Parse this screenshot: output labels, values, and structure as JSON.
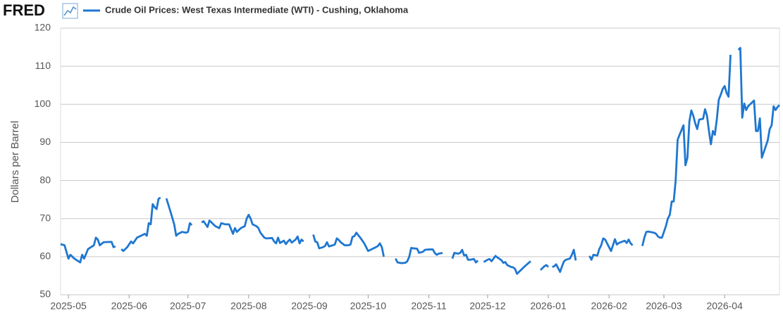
{
  "chart_data": {
    "type": "line",
    "logo": "FRED",
    "ylabel": "Dollars per Barrel",
    "xlim": [
      -4,
      363
    ],
    "xticks": [
      {
        "value": 0,
        "label": "2025-05"
      },
      {
        "value": 31,
        "label": "2025-06"
      },
      {
        "value": 61,
        "label": "2025-07"
      },
      {
        "value": 92,
        "label": "2025-08"
      },
      {
        "value": 123,
        "label": "2025-09"
      },
      {
        "value": 153,
        "label": "2025-10"
      },
      {
        "value": 184,
        "label": "2025-11"
      },
      {
        "value": 214,
        "label": "2025-12"
      },
      {
        "value": 245,
        "label": "2026-01"
      },
      {
        "value": 276,
        "label": "2026-02"
      },
      {
        "value": 304,
        "label": "2026-03"
      },
      {
        "value": 335,
        "label": "2026-04"
      }
    ],
    "ylim": [
      50,
      120
    ],
    "yticks": [
      50,
      60,
      70,
      80,
      90,
      100,
      110,
      120
    ],
    "grid": true,
    "x": [
      -4,
      -2,
      0,
      1,
      3,
      6,
      7,
      8,
      10,
      13,
      14,
      15,
      16,
      18,
      22,
      23,
      24,
      25,
      27,
      28,
      30,
      32,
      33,
      35,
      37,
      39,
      40,
      41,
      42,
      43,
      44,
      45,
      46,
      47,
      49,
      50,
      52,
      54,
      55,
      56,
      58,
      60,
      61,
      62,
      63,
      65,
      68,
      69,
      71,
      72,
      74,
      75,
      77,
      78,
      80,
      82,
      84,
      85,
      86,
      88,
      90,
      91,
      92,
      93,
      94,
      96,
      97,
      98,
      100,
      101,
      104,
      105,
      106,
      107,
      108,
      110,
      111,
      112,
      113,
      114,
      116,
      117,
      118,
      119,
      120,
      123,
      125,
      126,
      127,
      128,
      130,
      131,
      132,
      133,
      135,
      136,
      137,
      138,
      139,
      141,
      143,
      144,
      145,
      146,
      147,
      148,
      149,
      151,
      152,
      153,
      155,
      157,
      158,
      159,
      160,
      161,
      164,
      167,
      168,
      170,
      172,
      173,
      174,
      175,
      176,
      178,
      179,
      181,
      182,
      184,
      186,
      187,
      188,
      189,
      191,
      194,
      196,
      197,
      199,
      200,
      201,
      202,
      203,
      204,
      205,
      207,
      208,
      209,
      211,
      212,
      214,
      215,
      216,
      217,
      218,
      219,
      221,
      222,
      223,
      224,
      226,
      227,
      228,
      229,
      230,
      231,
      233,
      235,
      236,
      238,
      241,
      242,
      243,
      244,
      245,
      246,
      247,
      248,
      249,
      250,
      251,
      252,
      253,
      254,
      256,
      257,
      258,
      259,
      263,
      266,
      267,
      268,
      270,
      271,
      272,
      273,
      274,
      275,
      276,
      277,
      278,
      279,
      280,
      281,
      283,
      284,
      285,
      286,
      287,
      288,
      291,
      293,
      294,
      295,
      296,
      298,
      299,
      300,
      301,
      302,
      303,
      304,
      305,
      306,
      307,
      308,
      309,
      310,
      311,
      312,
      314,
      315,
      316,
      317,
      318,
      319,
      320,
      321,
      322,
      324,
      325,
      326,
      327,
      328,
      329,
      330,
      331,
      332,
      333,
      334,
      335,
      336,
      337,
      338,
      340,
      342,
      343,
      344,
      345,
      346,
      347,
      349,
      350,
      351,
      352,
      353,
      354,
      355,
      357,
      358,
      359,
      360,
      361,
      362,
      363
    ],
    "series": [
      {
        "name": "Crude Oil Prices: West Texas Intermediate (WTI) - Cushing, Oklahoma",
        "color": "#1f77d0",
        "values": [
          63.3,
          63,
          59.5,
          60.5,
          59.5,
          58.5,
          60.5,
          59.5,
          62,
          63,
          65,
          64.5,
          63,
          63.8,
          63.9,
          62.5,
          62.7,
          null,
          62,
          61.5,
          62.5,
          64,
          63.5,
          65,
          65.5,
          66,
          65.5,
          68.8,
          68.5,
          73.8,
          73,
          72.5,
          75.2,
          75.5,
          null,
          75.3,
          72,
          68.5,
          65.5,
          66,
          66.5,
          66.3,
          66.5,
          68.8,
          68.3,
          null,
          69,
          69.3,
          67.8,
          69.5,
          68.5,
          68,
          67.5,
          68.8,
          68.5,
          68.5,
          66,
          67.5,
          66.5,
          67.5,
          68,
          70,
          71,
          70,
          68.5,
          68,
          67.5,
          66.3,
          65,
          64.8,
          64.9,
          64,
          63.5,
          65,
          63.6,
          64.2,
          63.3,
          64,
          64.5,
          63.7,
          64.5,
          65.3,
          63.5,
          64.5,
          64,
          null,
          65.8,
          64,
          63.8,
          62.2,
          62.5,
          62.8,
          63.8,
          62.7,
          63,
          63.2,
          64.8,
          64.4,
          63.8,
          63,
          63,
          63.2,
          65.2,
          65.4,
          66.3,
          65.6,
          65,
          63.5,
          62.5,
          61.5,
          62,
          62.5,
          62.8,
          63.5,
          62.5,
          60,
          null,
          59.5,
          58.5,
          58.3,
          58.4,
          58.8,
          60,
          62.3,
          62.2,
          62.1,
          61,
          61.3,
          61.8,
          61.9,
          61.9,
          61,
          60.5,
          60.8,
          61,
          null,
          59.5,
          61,
          60.8,
          61,
          61.8,
          60.3,
          60.5,
          59.2,
          59.2,
          59.4,
          58.5,
          59,
          null,
          58.6,
          59.2,
          59.4,
          58.8,
          59.5,
          60.2,
          59.8,
          59.1,
          58.4,
          58.6,
          57.8,
          57.3,
          57.2,
          56.8,
          55.5,
          56,
          56.5,
          57.5,
          58.4,
          58.8,
          null,
          56.5,
          57,
          57.5,
          57.8,
          57.3,
          null,
          57.3,
          57.5,
          58,
          57,
          56,
          57.5,
          58.8,
          59.2,
          59.5,
          60.5,
          61.8,
          59,
          null,
          60.2,
          59.2,
          60.5,
          60.3,
          62,
          63,
          64.8,
          64.5,
          63.5,
          62.5,
          61.5,
          63,
          64.6,
          63.2,
          63.6,
          64,
          64.2,
          63.6,
          64.5,
          63.5,
          63,
          null,
          62.8,
          65,
          66.5,
          66.6,
          66.4,
          66.3,
          66,
          65.3,
          65,
          65,
          66.5,
          68,
          70,
          71,
          74.5,
          74.5,
          80,
          90.7,
          92,
          94.5,
          84,
          86,
          95.5,
          98.4,
          97,
          95,
          93.5,
          96,
          96.2,
          98.7,
          97,
          93,
          89.5,
          93,
          92,
          96,
          101.2,
          102.5,
          104,
          104.8,
          103,
          102,
          113,
          null,
          114.3,
          114.8,
          96.5,
          100.2,
          98.5,
          99.5,
          100.5,
          101,
          93,
          93,
          96.3,
          86,
          87.5,
          90.5,
          93.5,
          94.5,
          99.5,
          98.5,
          99.3,
          99.8
        ]
      }
    ]
  }
}
